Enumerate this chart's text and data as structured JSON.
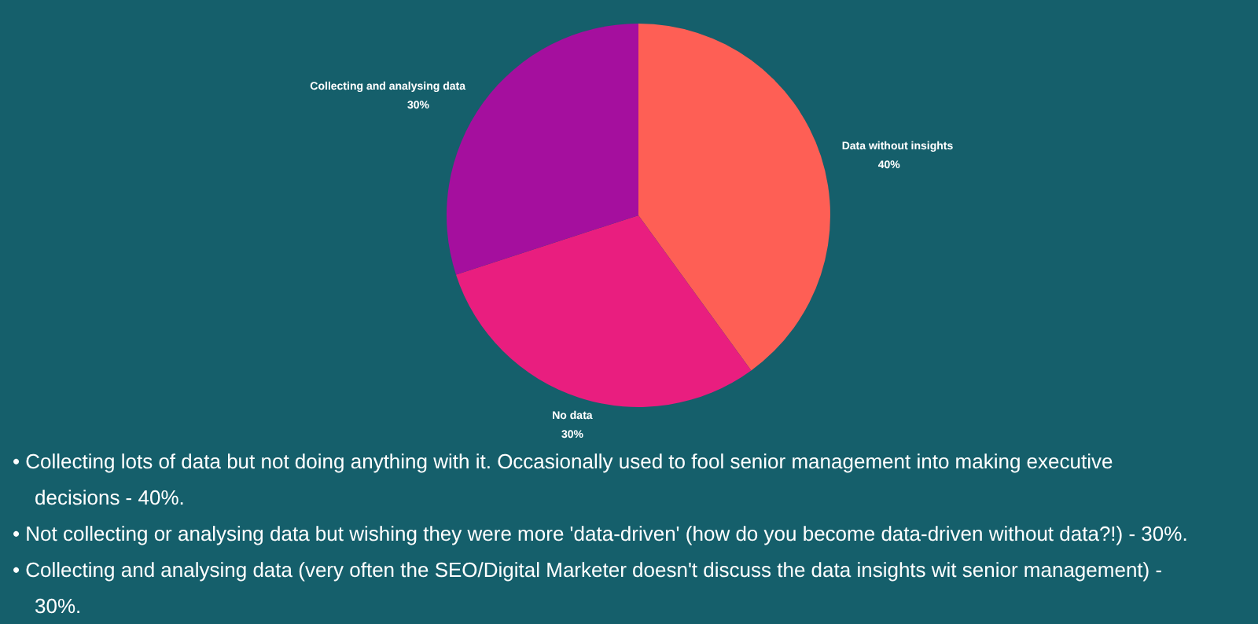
{
  "chart_data": {
    "type": "pie",
    "categories": [
      "Data without insights",
      "No data",
      "Collecting and analysing data"
    ],
    "values": [
      40,
      30,
      30
    ],
    "value_labels": [
      "40%",
      "30%",
      "30%"
    ],
    "colors": [
      "#fe5f55",
      "#e91e7f",
      "#a50f9e"
    ],
    "legend": false,
    "annotations": [
      "• Collecting lots of data but not doing anything with it. Occasionally used to fool senior management into making executive decisions - 40%.",
      "• Not collecting or analysing data but wishing they were more 'data-driven' (how do you become data-driven without data?!) - 30%.",
      "• Collecting and analysing data (very often the SEO/Digital Marketer doesn't discuss the data insights wit senior management) - 30%."
    ]
  }
}
